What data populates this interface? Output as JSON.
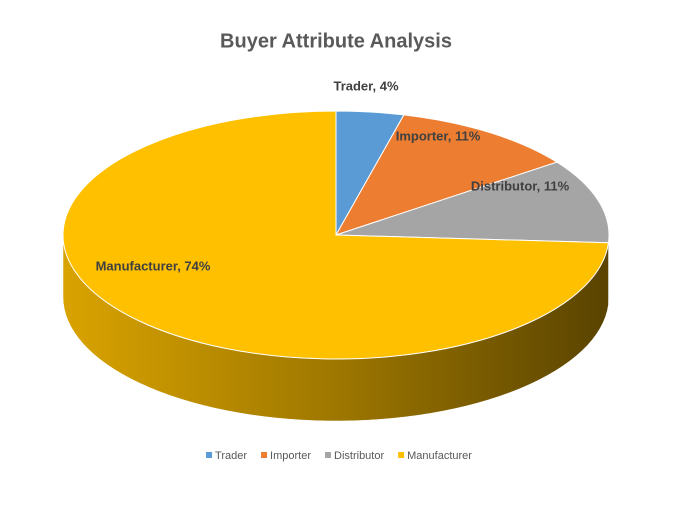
{
  "chart_data": {
    "type": "pie3d",
    "title": "Buyer Attribute Analysis",
    "categories": [
      "Trader",
      "Importer",
      "Distributor",
      "Manufacturer"
    ],
    "values": [
      4,
      11,
      11,
      74
    ],
    "value_labels": [
      "Trader, 4%",
      "Importer, 11%",
      "Distributor, 11%",
      "Manufacturer, 74%"
    ],
    "colors": [
      "#5b9bd5",
      "#ed7d31",
      "#a5a5a5",
      "#ffc000"
    ],
    "legend": "bottom"
  }
}
